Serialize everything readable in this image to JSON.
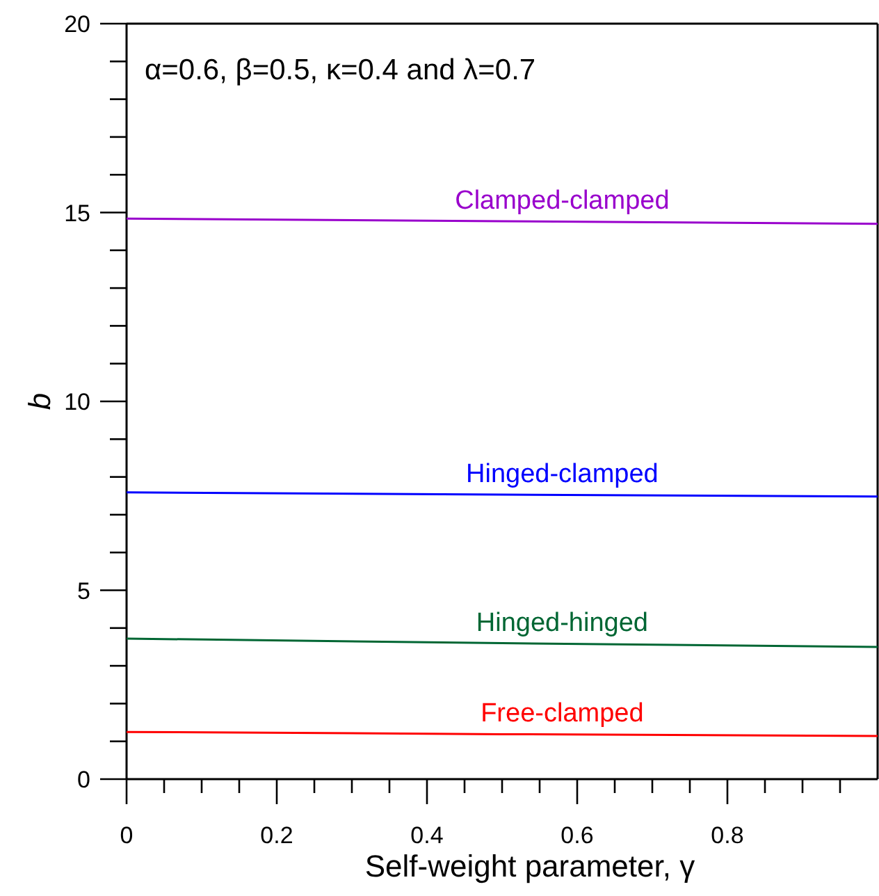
{
  "chart_data": {
    "type": "line",
    "xlabel": "Self-weight parameter, γ",
    "ylabel": "b",
    "annotations": [
      "α=0.6, β=0.5, κ=0.4 and λ=0.7"
    ],
    "x": [
      0,
      0.5,
      1
    ],
    "xlim": [
      0,
      1
    ],
    "ylim": [
      0,
      20
    ],
    "xticks": [
      0,
      {
        "value": 0.05,
        "label": null
      },
      {
        "value": 0.1,
        "label": null
      },
      {
        "value": 0.15,
        "label": null
      },
      0.2,
      {
        "value": 0.25,
        "label": null
      },
      {
        "value": 0.3,
        "label": null
      },
      {
        "value": 0.35,
        "label": null
      },
      0.4,
      {
        "value": 0.45,
        "label": null
      },
      {
        "value": 0.5,
        "label": null
      },
      {
        "value": 0.55,
        "label": null
      },
      0.6,
      {
        "value": 0.65,
        "label": null
      },
      {
        "value": 0.7,
        "label": null
      },
      {
        "value": 0.75,
        "label": null
      },
      0.8,
      {
        "value": 0.85,
        "label": null
      },
      {
        "value": 0.9,
        "label": null
      },
      {
        "value": 0.95,
        "label": null
      }
    ],
    "yticks": [
      0,
      {
        "value": 1,
        "label": null
      },
      {
        "value": 2,
        "label": null
      },
      {
        "value": 3,
        "label": null
      },
      {
        "value": 4,
        "label": null
      },
      5,
      {
        "value": 6,
        "label": null
      },
      {
        "value": 7,
        "label": null
      },
      {
        "value": 8,
        "label": null
      },
      {
        "value": 9,
        "label": null
      },
      10,
      {
        "value": 11,
        "label": null
      },
      {
        "value": 12,
        "label": null
      },
      {
        "value": 13,
        "label": null
      },
      {
        "value": 14,
        "label": null
      },
      15,
      {
        "value": 16,
        "label": null
      },
      {
        "value": 17,
        "label": null
      },
      {
        "value": 18,
        "label": null
      },
      {
        "value": 19,
        "label": null
      },
      20
    ],
    "marker": "none",
    "line_style": "solid",
    "grid": false,
    "series": [
      {
        "name": "Clamped-clamped",
        "color": "#9900cc",
        "values": [
          14.84,
          14.77,
          14.7
        ]
      },
      {
        "name": "Hinged-clamped",
        "color": "#0000ff",
        "values": [
          7.59,
          7.53,
          7.48
        ]
      },
      {
        "name": "Hinged-hinged",
        "color": "#006633",
        "values": [
          3.72,
          3.6,
          3.5
        ]
      },
      {
        "name": "Free-clamped",
        "color": "#ff0000",
        "values": [
          1.25,
          1.19,
          1.14
        ]
      }
    ]
  }
}
